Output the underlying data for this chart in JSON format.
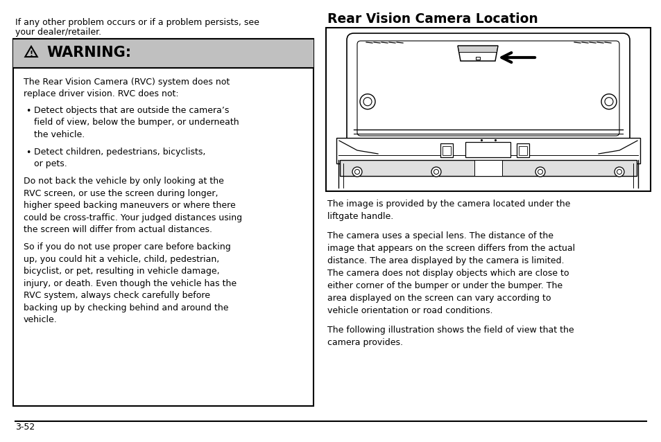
{
  "bg_color": "#ffffff",
  "page_number": "3-52",
  "top_text_line1": "If any other problem occurs or if a problem persists, see",
  "top_text_line2": "your dealer/retailer.",
  "warning_header_bg": "#c8c8c8",
  "warning_body_paras": [
    "The Rear Vision Camera (RVC) system does not\nreplace driver vision. RVC does not:",
    "Detect objects that are outside the camera’s\nfield of view, below the bumper, or underneath\nthe vehicle.",
    "Detect children, pedestrians, bicyclists,\nor pets.",
    "Do not back the vehicle by only looking at the\nRVC screen, or use the screen during longer,\nhigher speed backing maneuvers or where there\ncould be cross-traffic. Your judged distances using\nthe screen will differ from actual distances.",
    "So if you do not use proper care before backing\nup, you could hit a vehicle, child, pedestrian,\nbicyclist, or pet, resulting in vehicle damage,\ninjury, or death. Even though the vehicle has the\nRVC system, always check carefully before\nbacking up by checking behind and around the\nvehicle."
  ],
  "right_title": "Rear Vision Camera Location",
  "right_text1": "The image is provided by the camera located under the\nliftgate handle.",
  "right_text2": "The camera uses a special lens. The distance of the\nimage that appears on the screen differs from the actual\ndistance. The area displayed by the camera is limited.\nThe camera does not display objects which are close to\neither corner of the bumper or under the bumper. The\narea displayed on the screen can vary according to\nvehicle orientation or road conditions.",
  "right_text3": "The following illustration shows the field of view that the\ncamera provides.",
  "fs_body": 9.0,
  "fs_title": 13.5,
  "fs_warning_header": 15,
  "fs_page": 9.0
}
